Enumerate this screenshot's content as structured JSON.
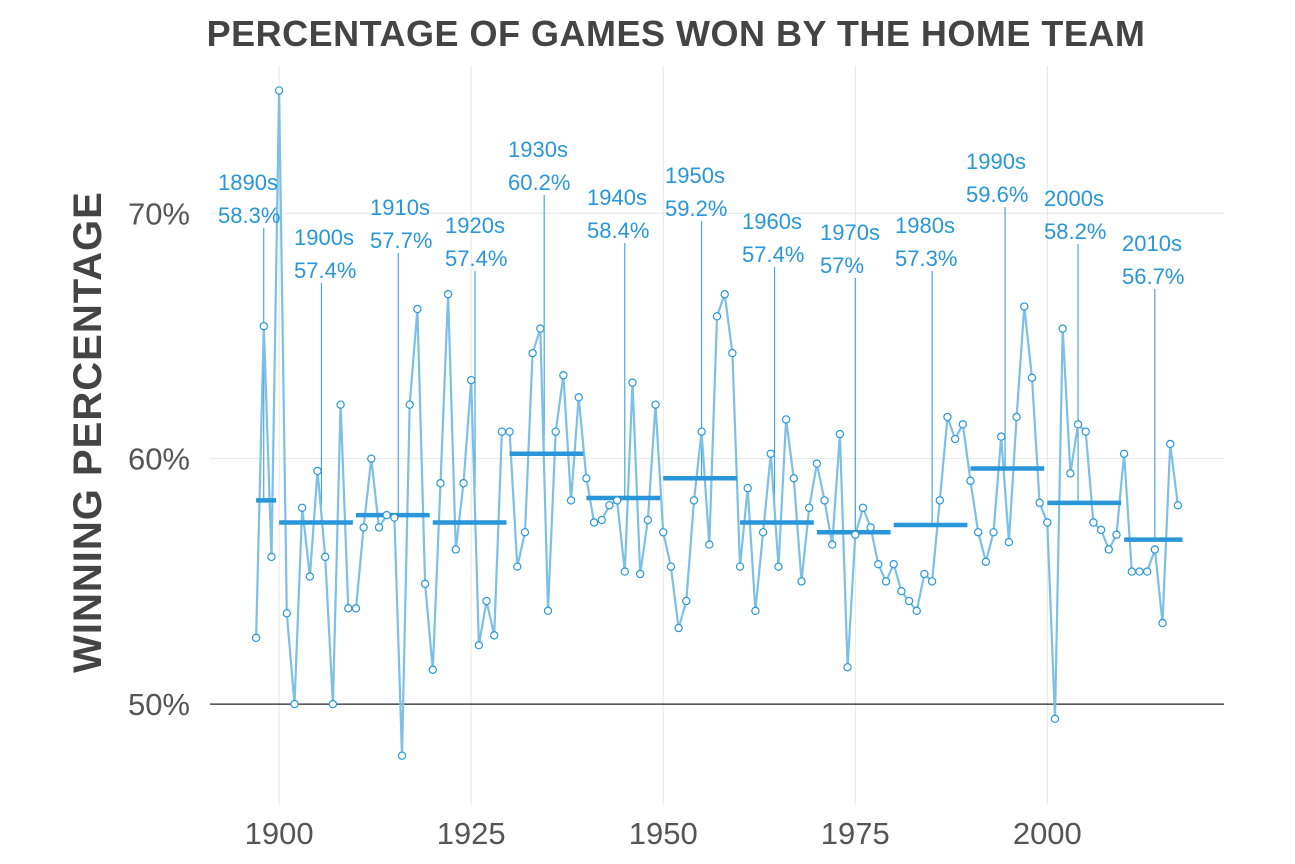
{
  "chart_data": {
    "type": "line",
    "title": "PERCENTAGE OF GAMES WON BY THE HOME TEAM",
    "xlabel": "",
    "ylabel": "WINNING PERCENTAGE",
    "xlim": [
      1891,
      2023
    ],
    "ylim": [
      46.5,
      76
    ],
    "x_ticks": [
      {
        "value": 1900,
        "label": "1900"
      },
      {
        "value": 1925,
        "label": "1925"
      },
      {
        "value": 1950,
        "label": "1950"
      },
      {
        "value": 1975,
        "label": "1975"
      },
      {
        "value": 2000,
        "label": "2000"
      }
    ],
    "y_ticks": [
      {
        "value": 50,
        "label": "50%"
      },
      {
        "value": 60,
        "label": "60%"
      },
      {
        "value": 70,
        "label": "70%"
      }
    ],
    "grid": true,
    "series": [
      {
        "color": "#7cc0e6",
        "points": [
          [
            1897,
            52.7
          ],
          [
            1898,
            65.4
          ],
          [
            1899,
            56.0
          ],
          [
            1900,
            75.0
          ],
          [
            1901,
            53.7
          ],
          [
            1902,
            50.0
          ],
          [
            1903,
            58.0
          ],
          [
            1904,
            55.2
          ],
          [
            1905,
            59.5
          ],
          [
            1906,
            56.0
          ],
          [
            1907,
            50.0
          ],
          [
            1908,
            62.2
          ],
          [
            1909,
            53.9
          ],
          [
            1910,
            53.9
          ],
          [
            1911,
            57.2
          ],
          [
            1912,
            60.0
          ],
          [
            1913,
            57.2
          ],
          [
            1914,
            57.7
          ],
          [
            1915,
            57.6
          ],
          [
            1916,
            47.9
          ],
          [
            1917,
            62.2
          ],
          [
            1918,
            66.1
          ],
          [
            1919,
            54.9
          ],
          [
            1920,
            51.4
          ],
          [
            1921,
            59.0
          ],
          [
            1922,
            66.7
          ],
          [
            1923,
            56.3
          ],
          [
            1924,
            59.0
          ],
          [
            1925,
            63.2
          ],
          [
            1926,
            52.4
          ],
          [
            1927,
            54.2
          ],
          [
            1928,
            52.8
          ],
          [
            1929,
            61.1
          ],
          [
            1930,
            61.1
          ],
          [
            1931,
            55.6
          ],
          [
            1932,
            57.0
          ],
          [
            1933,
            64.3
          ],
          [
            1934,
            65.3
          ],
          [
            1935,
            53.8
          ],
          [
            1936,
            61.1
          ],
          [
            1937,
            63.4
          ],
          [
            1938,
            58.3
          ],
          [
            1939,
            62.5
          ],
          [
            1940,
            59.2
          ],
          [
            1941,
            57.4
          ],
          [
            1942,
            57.5
          ],
          [
            1943,
            58.1
          ],
          [
            1944,
            58.3
          ],
          [
            1945,
            55.4
          ],
          [
            1946,
            63.1
          ],
          [
            1947,
            55.3
          ],
          [
            1948,
            57.5
          ],
          [
            1949,
            62.2
          ],
          [
            1950,
            57.0
          ],
          [
            1951,
            55.6
          ],
          [
            1952,
            53.1
          ],
          [
            1953,
            54.2
          ],
          [
            1954,
            58.3
          ],
          [
            1955,
            61.1
          ],
          [
            1956,
            56.5
          ],
          [
            1957,
            65.8
          ],
          [
            1958,
            66.7
          ],
          [
            1959,
            64.3
          ],
          [
            1960,
            55.6
          ],
          [
            1961,
            58.8
          ],
          [
            1962,
            53.8
          ],
          [
            1963,
            57.0
          ],
          [
            1964,
            60.2
          ],
          [
            1965,
            55.6
          ],
          [
            1966,
            61.6
          ],
          [
            1967,
            59.2
          ],
          [
            1968,
            55.0
          ],
          [
            1969,
            58.0
          ],
          [
            1970,
            59.8
          ],
          [
            1971,
            58.3
          ],
          [
            1972,
            56.5
          ],
          [
            1973,
            61.0
          ],
          [
            1974,
            51.5
          ],
          [
            1975,
            56.9
          ],
          [
            1976,
            58.0
          ],
          [
            1977,
            57.2
          ],
          [
            1978,
            55.7
          ],
          [
            1979,
            55.0
          ],
          [
            1980,
            55.7
          ],
          [
            1981,
            54.6
          ],
          [
            1982,
            54.2
          ],
          [
            1983,
            53.8
          ],
          [
            1984,
            55.3
          ],
          [
            1985,
            55.0
          ],
          [
            1986,
            58.3
          ],
          [
            1987,
            61.7
          ],
          [
            1988,
            60.8
          ],
          [
            1989,
            61.4
          ],
          [
            1990,
            59.1
          ],
          [
            1991,
            57.0
          ],
          [
            1992,
            55.8
          ],
          [
            1993,
            57.0
          ],
          [
            1994,
            60.9
          ],
          [
            1995,
            56.6
          ],
          [
            1996,
            61.7
          ],
          [
            1997,
            66.2
          ],
          [
            1998,
            63.3
          ],
          [
            1999,
            58.2
          ],
          [
            2000,
            57.4
          ],
          [
            2001,
            49.4
          ],
          [
            2002,
            65.3
          ],
          [
            2003,
            59.4
          ],
          [
            2004,
            61.4
          ],
          [
            2005,
            61.1
          ],
          [
            2006,
            57.4
          ],
          [
            2007,
            57.1
          ],
          [
            2008,
            56.3
          ],
          [
            2009,
            56.9
          ],
          [
            2010,
            60.2
          ],
          [
            2011,
            55.4
          ],
          [
            2012,
            55.4
          ],
          [
            2013,
            55.4
          ],
          [
            2014,
            56.3
          ],
          [
            2015,
            53.3
          ],
          [
            2016,
            60.6
          ],
          [
            2017,
            58.1
          ]
        ]
      }
    ],
    "decade_averages": [
      {
        "start": 1897,
        "end": 1899.6,
        "value": 58.3,
        "decade": "1890s",
        "label": "58.3%"
      },
      {
        "start": 1900,
        "end": 1909.6,
        "value": 57.4,
        "decade": "1900s",
        "label": "57.4%"
      },
      {
        "start": 1910,
        "end": 1919.6,
        "value": 57.7,
        "decade": "1910s",
        "label": "57.7%"
      },
      {
        "start": 1920,
        "end": 1929.6,
        "value": 57.4,
        "decade": "1920s",
        "label": "57.4%"
      },
      {
        "start": 1930,
        "end": 1939.6,
        "value": 60.2,
        "decade": "1930s",
        "label": "60.2%"
      },
      {
        "start": 1940,
        "end": 1949.6,
        "value": 58.4,
        "decade": "1940s",
        "label": "58.4%"
      },
      {
        "start": 1950,
        "end": 1959.6,
        "value": 59.2,
        "decade": "1950s",
        "label": "59.2%"
      },
      {
        "start": 1960,
        "end": 1969.6,
        "value": 57.4,
        "decade": "1960s",
        "label": "57.4%"
      },
      {
        "start": 1970,
        "end": 1979.6,
        "value": 57.0,
        "decade": "1970s",
        "label": "57%"
      },
      {
        "start": 1980,
        "end": 1989.6,
        "value": 57.3,
        "decade": "1980s",
        "label": "57.3%"
      },
      {
        "start": 1990,
        "end": 1999.6,
        "value": 59.6,
        "decade": "1990s",
        "label": "59.6%"
      },
      {
        "start": 2000,
        "end": 2009.6,
        "value": 58.2,
        "decade": "2000s",
        "label": "58.2%"
      },
      {
        "start": 2010,
        "end": 2017.6,
        "value": 56.7,
        "decade": "2010s",
        "label": "56.7%"
      }
    ],
    "colors": {
      "line": "#7cc0e6",
      "average": "#2896d8",
      "annotation": "#2896d8",
      "baseline": "#222222",
      "grid": "#e6e6e6"
    }
  }
}
